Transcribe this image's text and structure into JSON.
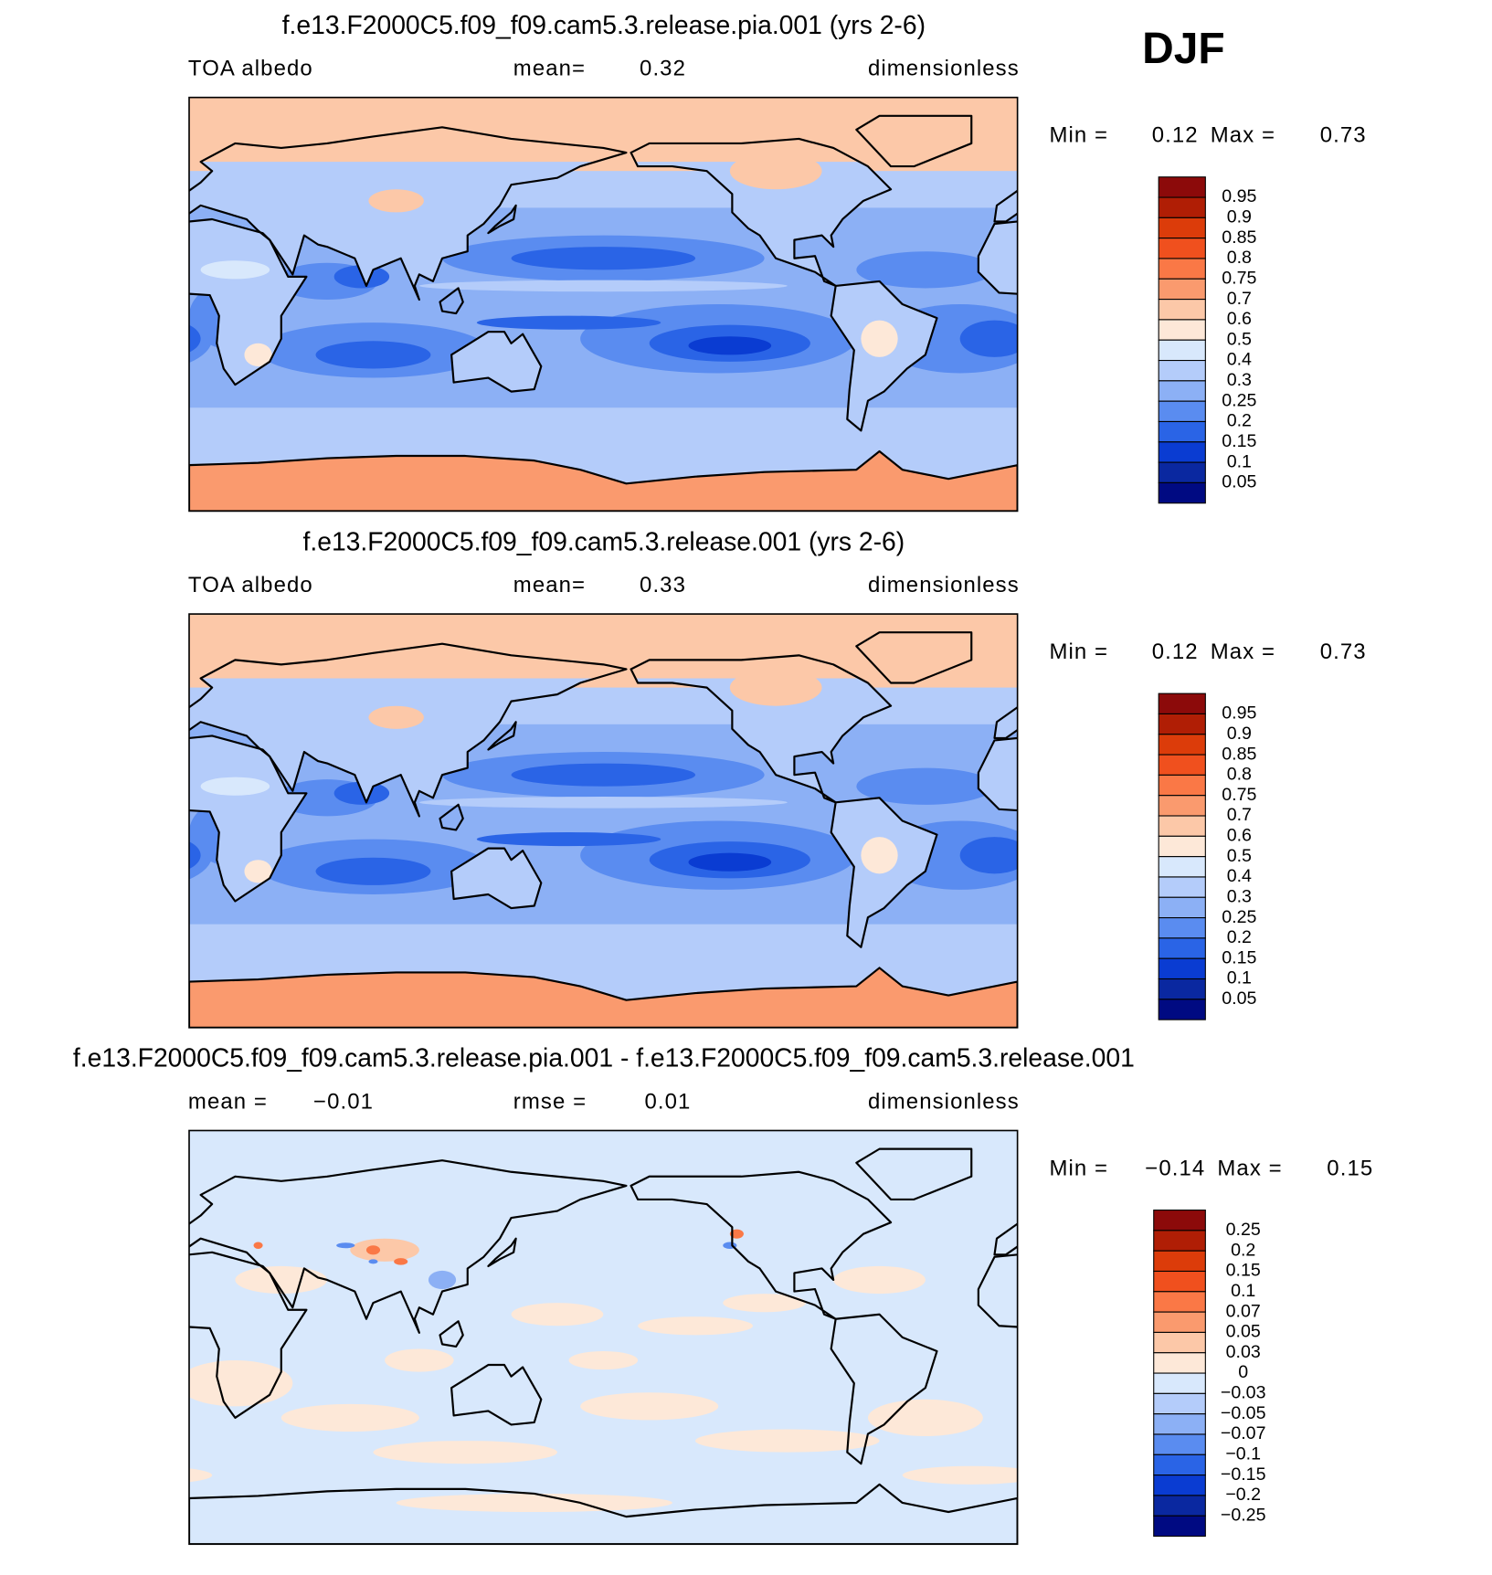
{
  "figure_label": "DJF",
  "panels": [
    {
      "title": "f.e13.F2000C5.f09_f09.cam5.3.release.pia.001 (yrs 2-6)",
      "kind": "field",
      "left": "TOA albedo",
      "center": "mean=",
      "center_value": "0.32",
      "right": "dimensionless",
      "min_label": "Min =",
      "min": "0.12",
      "max_label": "Max =",
      "max": "0.73",
      "colorbar": {
        "levels": [
          "0.95",
          "0.9",
          "0.85",
          "0.8",
          "0.75",
          "0.7",
          "0.6",
          "0.5",
          "0.4",
          "0.3",
          "0.25",
          "0.2",
          "0.15",
          "0.1",
          "0.05"
        ],
        "colors": [
          "#8c0a0a",
          "#b01e05",
          "#dc3c0a",
          "#f0501e",
          "#fa7846",
          "#fa9a6e",
          "#fcc8a8",
          "#fde8d8",
          "#d8e8fc",
          "#b4ccfa",
          "#8cb0f5",
          "#5a8cf0",
          "#2a64e6",
          "#0a3cd2",
          "#0a28a0",
          "#000a82"
        ]
      }
    },
    {
      "title": "f.e13.F2000C5.f09_f09.cam5.3.release.001 (yrs 2-6)",
      "kind": "field",
      "left": "TOA albedo",
      "center": "mean=",
      "center_value": "0.33",
      "right": "dimensionless",
      "min_label": "Min =",
      "min": "0.12",
      "max_label": "Max =",
      "max": "0.73",
      "colorbar": {
        "levels": [
          "0.95",
          "0.9",
          "0.85",
          "0.8",
          "0.75",
          "0.7",
          "0.6",
          "0.5",
          "0.4",
          "0.3",
          "0.25",
          "0.2",
          "0.15",
          "0.1",
          "0.05"
        ],
        "colors": [
          "#8c0a0a",
          "#b01e05",
          "#dc3c0a",
          "#f0501e",
          "#fa7846",
          "#fa9a6e",
          "#fcc8a8",
          "#fde8d8",
          "#d8e8fc",
          "#b4ccfa",
          "#8cb0f5",
          "#5a8cf0",
          "#2a64e6",
          "#0a3cd2",
          "#0a28a0",
          "#000a82"
        ]
      }
    },
    {
      "title": "f.e13.F2000C5.f09_f09.cam5.3.release.pia.001 - f.e13.F2000C5.f09_f09.cam5.3.release.001",
      "kind": "diff",
      "left": "mean =",
      "left_value": "−0.01",
      "center": "rmse =",
      "center_value": "0.01",
      "right": "dimensionless",
      "min_label": "Min =",
      "min": "−0.14",
      "max_label": "Max =",
      "max": "0.15",
      "colorbar": {
        "levels": [
          "0.25",
          "0.2",
          "0.15",
          "0.1",
          "0.07",
          "0.05",
          "0.03",
          "0",
          "−0.03",
          "−0.05",
          "−0.07",
          "−0.1",
          "−0.15",
          "−0.2",
          "−0.25"
        ],
        "colors": [
          "#8c0a0a",
          "#b01e05",
          "#dc3c0a",
          "#f0501e",
          "#fa7846",
          "#fa9a6e",
          "#fcc8a8",
          "#fde8d8",
          "#d8e8fc",
          "#b4ccfa",
          "#8cb0f5",
          "#5a8cf0",
          "#2a64e6",
          "#0a3cd2",
          "#0a28a0",
          "#000a82"
        ]
      }
    }
  ]
}
